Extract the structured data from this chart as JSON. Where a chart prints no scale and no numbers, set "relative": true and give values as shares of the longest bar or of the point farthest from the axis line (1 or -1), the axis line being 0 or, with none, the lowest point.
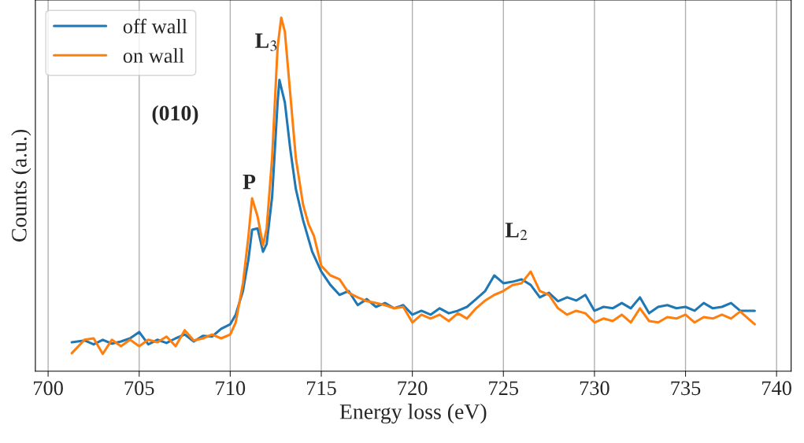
{
  "chart_data": {
    "type": "line",
    "relative": true,
    "xlabel": "Energy loss (eV)",
    "ylabel": "Counts (a.u.)",
    "xlim": [
      699.3,
      740.8
    ],
    "xticks": [
      700,
      705,
      710,
      715,
      720,
      725,
      730,
      735,
      740
    ],
    "grid": "x",
    "legend": "top left",
    "tick_labels": "x",
    "annotations": [
      "P",
      "L$_{3}$",
      "L$_{2}$",
      "(010)"
    ],
    "series": [
      {
        "name": "off wall",
        "color": "#1f77b4",
        "x": [
          701.3,
          702,
          702.5,
          703,
          703.5,
          704,
          704.5,
          705,
          705.5,
          706,
          706.5,
          707,
          707.5,
          708,
          708.5,
          709,
          709.5,
          710,
          710.3,
          710.7,
          711,
          711.2,
          711.5,
          711.8,
          712,
          712.3,
          712.6,
          712.7,
          713,
          713.3,
          713.6,
          714,
          714.5,
          715,
          715.5,
          716,
          716.5,
          717,
          717.5,
          718,
          718.5,
          719,
          719.5,
          720,
          720.5,
          721,
          721.5,
          722,
          722.5,
          723,
          723.5,
          724,
          724.5,
          725,
          725.5,
          726,
          726.5,
          727,
          727.5,
          728,
          728.5,
          729,
          729.5,
          730,
          730.5,
          731,
          731.5,
          732,
          732.5,
          733,
          733.5,
          734,
          734.5,
          735,
          735.5,
          736,
          736.5,
          737,
          737.5,
          738,
          738.8
        ],
        "values": [
          0.082,
          0.087,
          0.076,
          0.089,
          0.078,
          0.084,
          0.093,
          0.111,
          0.076,
          0.089,
          0.08,
          0.093,
          0.104,
          0.084,
          0.1,
          0.098,
          0.12,
          0.133,
          0.16,
          0.227,
          0.316,
          0.4,
          0.404,
          0.338,
          0.36,
          0.493,
          0.76,
          0.824,
          0.76,
          0.627,
          0.516,
          0.427,
          0.338,
          0.282,
          0.244,
          0.216,
          0.227,
          0.187,
          0.204,
          0.182,
          0.193,
          0.178,
          0.187,
          0.16,
          0.171,
          0.16,
          0.178,
          0.164,
          0.171,
          0.182,
          0.204,
          0.227,
          0.271,
          0.249,
          0.253,
          0.26,
          0.244,
          0.209,
          0.222,
          0.198,
          0.209,
          0.2,
          0.216,
          0.171,
          0.182,
          0.178,
          0.193,
          0.178,
          0.209,
          0.164,
          0.182,
          0.187,
          0.178,
          0.182,
          0.171,
          0.193,
          0.178,
          0.182,
          0.193,
          0.171,
          0.171
        ]
      },
      {
        "name": "on wall",
        "color": "#ff7f0e",
        "x": [
          701.3,
          702,
          702.5,
          703,
          703.5,
          704,
          704.5,
          705,
          705.5,
          706,
          706.5,
          707,
          707.5,
          708,
          708.5,
          709,
          709.5,
          710,
          710.3,
          710.7,
          711,
          711.2,
          711.5,
          711.8,
          712,
          712.3,
          712.6,
          712.8,
          713,
          713.3,
          713.6,
          714,
          714.3,
          714.6,
          715,
          715.5,
          716,
          716.5,
          717,
          717.5,
          718,
          718.5,
          719,
          719.5,
          720,
          720.5,
          721,
          721.5,
          722,
          722.5,
          723,
          723.5,
          724,
          724.5,
          725,
          725.5,
          726,
          726.5,
          727,
          727.5,
          728,
          728.5,
          729,
          729.5,
          730,
          730.5,
          731,
          731.5,
          732,
          732.5,
          733,
          733.5,
          734,
          734.5,
          735,
          735.5,
          736,
          736.5,
          737,
          737.5,
          738,
          738.8
        ],
        "values": [
          0.051,
          0.089,
          0.093,
          0.049,
          0.089,
          0.071,
          0.089,
          0.071,
          0.089,
          0.082,
          0.098,
          0.071,
          0.116,
          0.087,
          0.093,
          0.104,
          0.093,
          0.104,
          0.138,
          0.249,
          0.382,
          0.489,
          0.438,
          0.356,
          0.404,
          0.604,
          0.916,
          1,
          0.96,
          0.782,
          0.604,
          0.471,
          0.416,
          0.382,
          0.298,
          0.271,
          0.26,
          0.222,
          0.209,
          0.198,
          0.193,
          0.187,
          0.178,
          0.182,
          0.138,
          0.16,
          0.149,
          0.16,
          0.142,
          0.164,
          0.149,
          0.178,
          0.2,
          0.216,
          0.227,
          0.244,
          0.249,
          0.282,
          0.227,
          0.216,
          0.178,
          0.16,
          0.171,
          0.164,
          0.138,
          0.149,
          0.142,
          0.16,
          0.138,
          0.178,
          0.142,
          0.138,
          0.153,
          0.149,
          0.16,
          0.138,
          0.153,
          0.149,
          0.16,
          0.149,
          0.169,
          0.133
        ]
      }
    ]
  }
}
